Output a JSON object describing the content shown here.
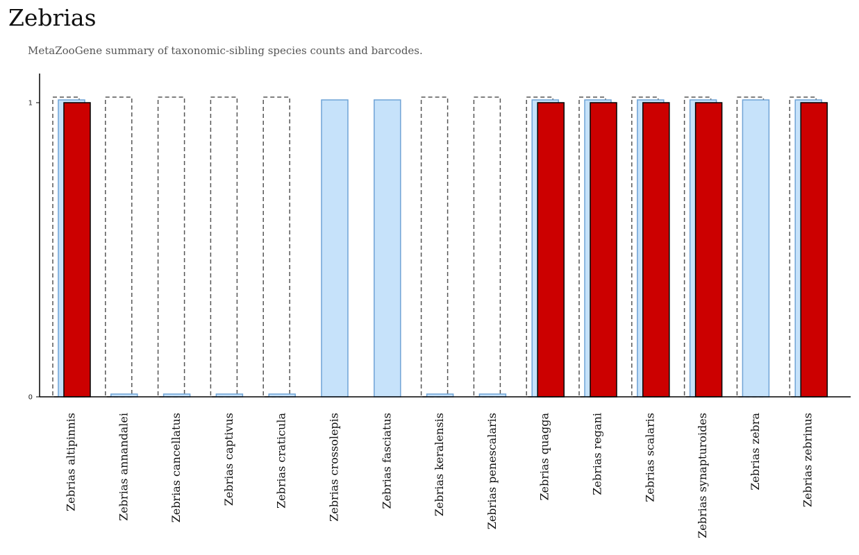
{
  "header": {
    "title": "Zebrias",
    "subtitle": "MetaZooGene summary of taxonomic-sibling species counts and barcodes."
  },
  "chart_data": {
    "type": "bar",
    "categories": [
      "Zebrias altipinnis",
      "Zebrias annandalei",
      "Zebrias cancellatus",
      "Zebrias captivus",
      "Zebrias craticula",
      "Zebrias crossolepis",
      "Zebrias fasciatus",
      "Zebrias keralensis",
      "Zebrias penescalaris",
      "Zebrias quagga",
      "Zebrias regani",
      "Zebrias scalaris",
      "Zebrias synapturoides",
      "Zebrias zebra",
      "Zebrias zebrinus"
    ],
    "series": [
      {
        "values": [
          1,
          1,
          1,
          1,
          1,
          0,
          0,
          1,
          1,
          1,
          1,
          1,
          1,
          1,
          1
        ],
        "color": "#555555",
        "style": "dashed-outline"
      },
      {
        "values": [
          1,
          0,
          0,
          0,
          0,
          1,
          1,
          0,
          0,
          1,
          1,
          1,
          1,
          1,
          1
        ],
        "color": "#c6e2fa",
        "edge": "#6fa3d6"
      },
      {
        "values": [
          1,
          0,
          0,
          0,
          0,
          0,
          0,
          0,
          0,
          1,
          1,
          1,
          1,
          0,
          1
        ],
        "color": "#cc0000",
        "edge": "#000000"
      }
    ],
    "ylim": [
      0,
      1
    ],
    "yticks": [
      "0",
      "1"
    ],
    "grid": false,
    "legend": "none"
  }
}
